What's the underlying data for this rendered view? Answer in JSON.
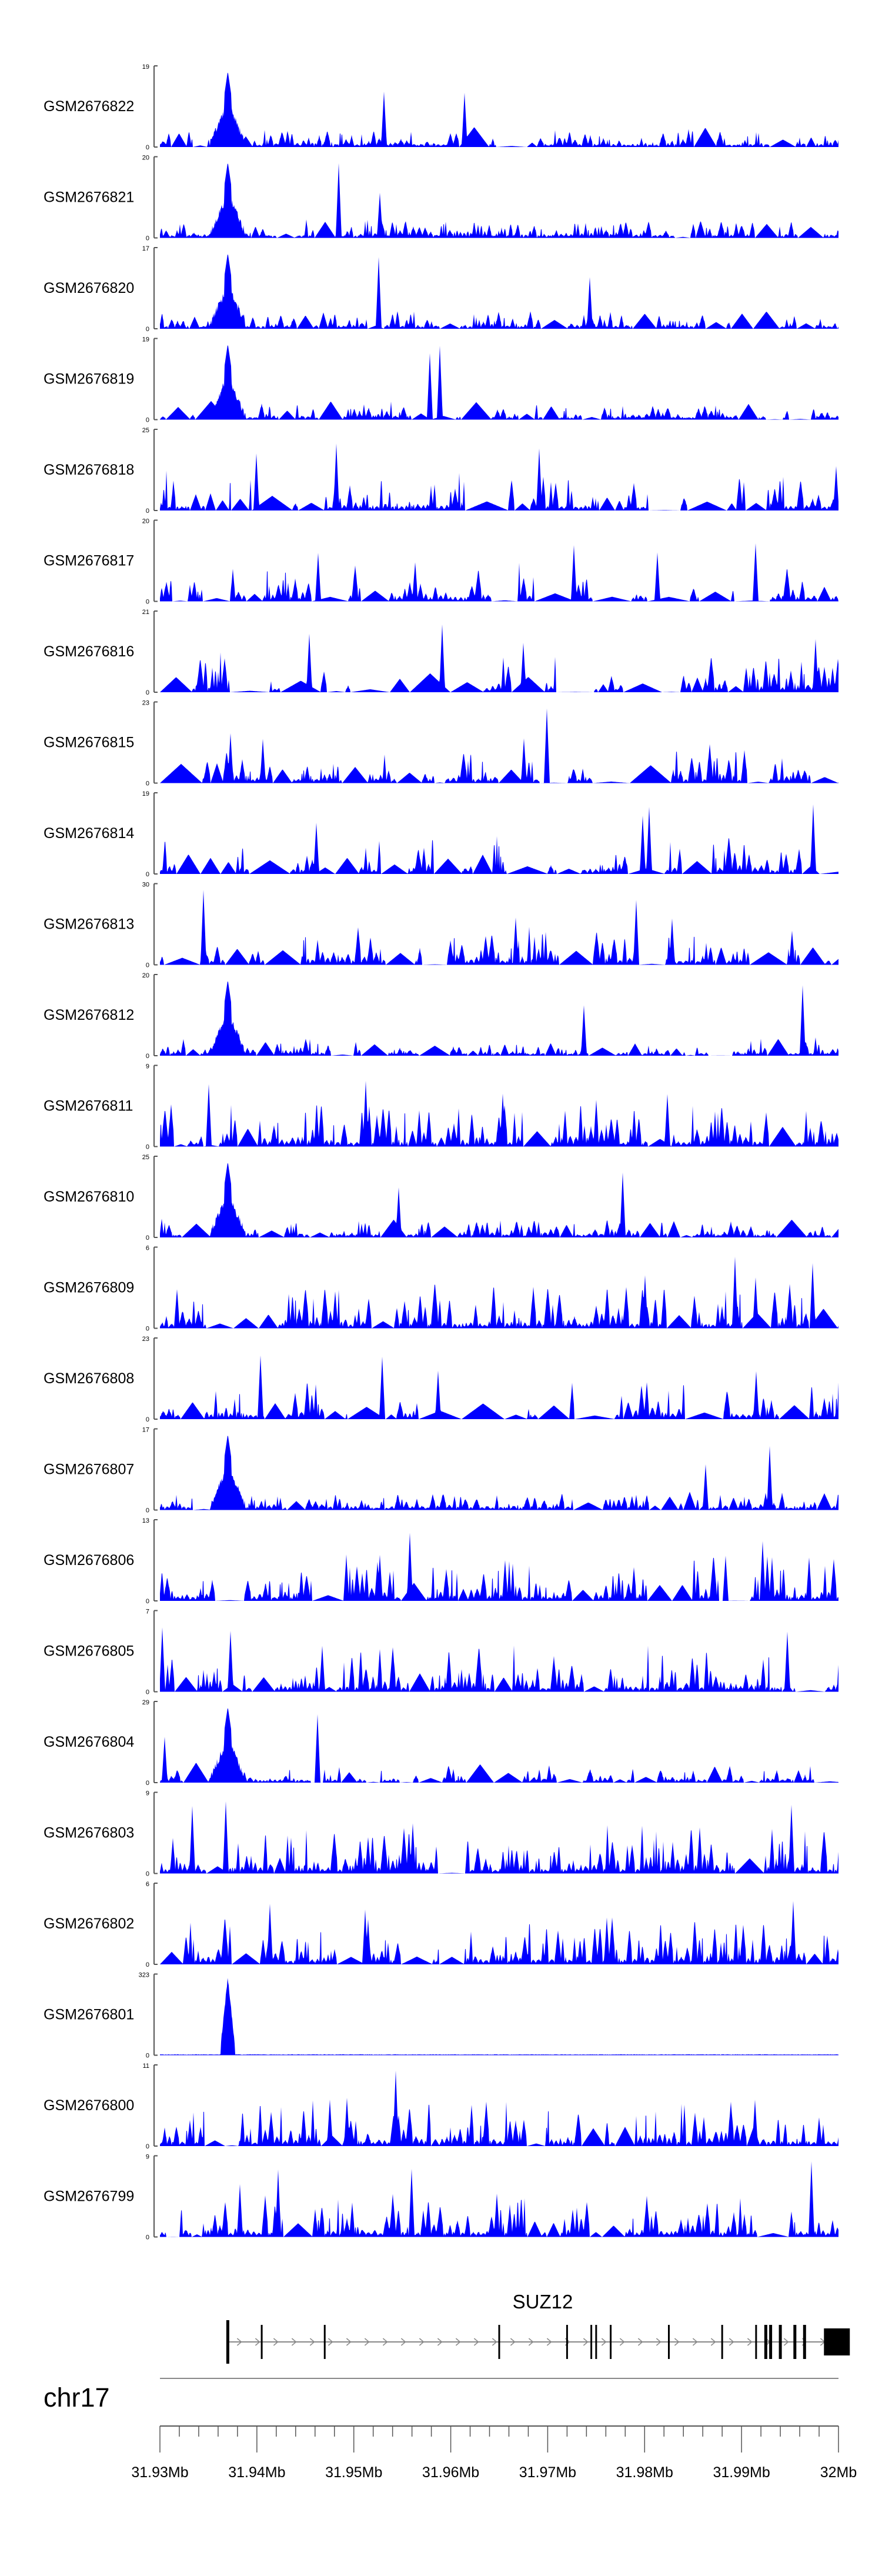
{
  "chart_data": {
    "type": "area",
    "title": "",
    "chromosome": "chr17",
    "xlim": [
      31.93,
      32.0
    ],
    "x_unit": "Mb",
    "x_ticks": [
      31.93,
      31.94,
      31.95,
      31.96,
      31.97,
      31.98,
      31.99,
      32.0
    ],
    "x_tick_labels": [
      "31.93Mb",
      "31.94Mb",
      "31.95Mb",
      "31.96Mb",
      "31.97Mb",
      "31.98Mb",
      "31.99Mb",
      "32Mb"
    ],
    "peak_position": 31.937,
    "gene": {
      "name": "SUZ12",
      "start": 31.937,
      "end": 32.0,
      "strand": "+",
      "exons": [
        31.937,
        31.9405,
        31.947,
        31.965,
        31.972,
        31.9745,
        31.975,
        31.9765,
        31.9825,
        31.988,
        31.9915,
        31.9925,
        31.993,
        31.994,
        31.9955,
        31.9965,
        31.9985
      ]
    },
    "series": [
      {
        "name": "GSM2676822",
        "ymax": 19,
        "tick_label": "19",
        "style": "peak"
      },
      {
        "name": "GSM2676821",
        "ymax": 20,
        "tick_label": "20",
        "style": "peak"
      },
      {
        "name": "GSM2676820",
        "ymax": 17,
        "tick_label": "17",
        "style": "peak"
      },
      {
        "name": "GSM2676819",
        "ymax": 19,
        "tick_label": "19",
        "style": "peak"
      },
      {
        "name": "GSM2676818",
        "ymax": 25,
        "tick_label": "25",
        "style": "sparse"
      },
      {
        "name": "GSM2676817",
        "ymax": 20,
        "tick_label": "20",
        "style": "sparse"
      },
      {
        "name": "GSM2676816",
        "ymax": 21,
        "tick_label": "21",
        "style": "sparse"
      },
      {
        "name": "GSM2676815",
        "ymax": 23,
        "tick_label": "23",
        "style": "sparse"
      },
      {
        "name": "GSM2676814",
        "ymax": 19,
        "tick_label": "19",
        "style": "sparse"
      },
      {
        "name": "GSM2676813",
        "ymax": 30,
        "tick_label": "30",
        "style": "sparse"
      },
      {
        "name": "GSM2676812",
        "ymax": 20,
        "tick_label": "20",
        "style": "peak"
      },
      {
        "name": "GSM2676811",
        "ymax": 9,
        "tick_label": "9",
        "style": "dense"
      },
      {
        "name": "GSM2676810",
        "ymax": 25,
        "tick_label": "25",
        "style": "peak"
      },
      {
        "name": "GSM2676809",
        "ymax": 6,
        "tick_label": "6",
        "style": "dense"
      },
      {
        "name": "GSM2676808",
        "ymax": 23,
        "tick_label": "23",
        "style": "sparse"
      },
      {
        "name": "GSM2676807",
        "ymax": 17,
        "tick_label": "17",
        "style": "peak"
      },
      {
        "name": "GSM2676806",
        "ymax": 13,
        "tick_label": "13",
        "style": "dense"
      },
      {
        "name": "GSM2676805",
        "ymax": 7,
        "tick_label": "7",
        "style": "dense"
      },
      {
        "name": "GSM2676804",
        "ymax": 29,
        "tick_label": "29",
        "style": "peak"
      },
      {
        "name": "GSM2676803",
        "ymax": 9,
        "tick_label": "9",
        "style": "dense"
      },
      {
        "name": "GSM2676802",
        "ymax": 6,
        "tick_label": "6",
        "style": "dense"
      },
      {
        "name": "GSM2676801",
        "ymax": 323,
        "tick_label": "323",
        "style": "single"
      },
      {
        "name": "GSM2676800",
        "ymax": 11,
        "tick_label": "11",
        "style": "dense"
      },
      {
        "name": "GSM2676799",
        "ymax": 9,
        "tick_label": "9",
        "style": "dense"
      }
    ],
    "y_zero_label": "0",
    "colors": {
      "track_fill": "#0000ff",
      "axis": "#555555",
      "gene": "#000000",
      "text": "#000000"
    }
  }
}
